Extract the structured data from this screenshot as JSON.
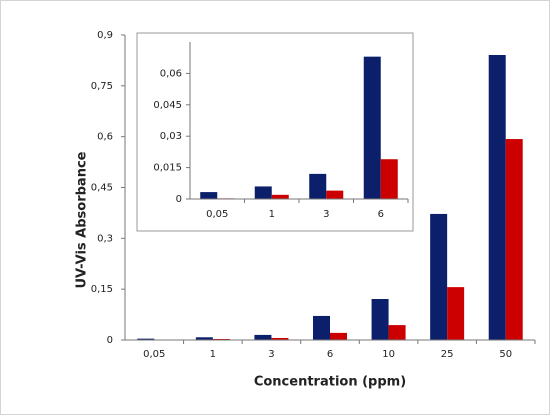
{
  "chart_data": [
    {
      "type": "bar",
      "y_label": "UV-Vis Absorbance",
      "x_label": "Concentration (ppm)",
      "categories": [
        "0,05",
        "1",
        "3",
        "6",
        "10",
        "25",
        "50"
      ],
      "series": [
        {
          "color": "#0c1f6b",
          "values": [
            0.004,
            0.008,
            0.015,
            0.071,
            0.121,
            0.372,
            0.841
          ]
        },
        {
          "color": "#cc0000",
          "values": [
            0.001,
            0.003,
            0.006,
            0.021,
            0.044,
            0.156,
            0.593
          ]
        }
      ],
      "ylim": [
        0,
        0.9
      ],
      "yticks": [
        0,
        {
          "value": 0.15,
          "label": "0,15"
        },
        {
          "value": 0.3,
          "label": "0,3"
        },
        {
          "value": 0.45,
          "label": "0,45"
        },
        {
          "value": 0.6,
          "label": "0,6"
        },
        {
          "value": 0.75,
          "label": "0,75"
        },
        {
          "value": 0.9,
          "label": "0,9"
        }
      ]
    },
    {
      "type": "bar",
      "categories": [
        "0,05",
        "1",
        "3",
        "6"
      ],
      "series": [
        {
          "color": "#0c1f6b",
          "values": [
            0.0033,
            0.006,
            0.012,
            0.068
          ]
        },
        {
          "color": "#cc0000",
          "values": [
            0.0003,
            0.002,
            0.004,
            0.019
          ]
        }
      ],
      "ylim": [
        0,
        0.075
      ],
      "yticks": [
        0,
        {
          "value": 0.015,
          "label": "0,015"
        },
        {
          "value": 0.03,
          "label": "0,03"
        },
        {
          "value": 0.045,
          "label": "0,045"
        },
        {
          "value": 0.06,
          "label": "0,06"
        }
      ]
    }
  ]
}
